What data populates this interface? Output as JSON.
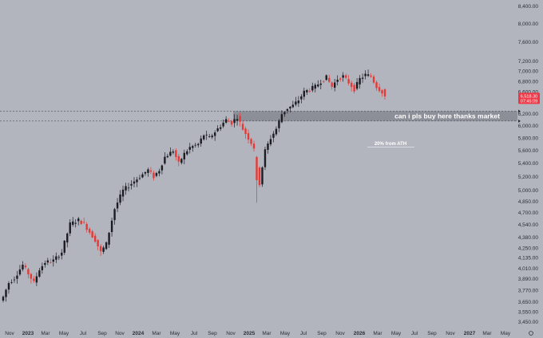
{
  "chart_data": {
    "type": "candlestick",
    "colors": {
      "up": "#1c1c22",
      "down": "#e53935",
      "background": "#b2b5be",
      "zone": "#8c8f98",
      "price_tag": "#f23645"
    },
    "yticks": [
      "8,400.00",
      "8,000.00",
      "7,600.00",
      "7,200.00",
      "7,000.00",
      "6,800.00",
      "6,600.00",
      "6,200.00",
      "6,000.00",
      "5,800.00",
      "5,600.00",
      "5,400.00",
      "5,200.00",
      "5,000.00",
      "4,850.00",
      "4,700.00",
      "4,540.00",
      "4,380.00",
      "4,250.00",
      "4,135.00",
      "4,010.00",
      "3,890.00",
      "3,770.00",
      "3,650.00",
      "3,550.00",
      "3,450.00"
    ],
    "ytick_values": [
      8400,
      8000,
      7600,
      7200,
      7000,
      6800,
      6600,
      6200,
      6000,
      5800,
      5600,
      5400,
      5200,
      5000,
      4850,
      4700,
      4540,
      4380,
      4250,
      4135,
      4010,
      3890,
      3770,
      3650,
      3550,
      3450
    ],
    "xticks": [
      "Nov",
      "2023",
      "Mar",
      "May",
      "Jul",
      "Sep",
      "Nov",
      "2024",
      "Mar",
      "May",
      "Jul",
      "Sep",
      "Nov",
      "2025",
      "Mar",
      "May",
      "Jul",
      "Sep",
      "Nov",
      "2026",
      "Mar",
      "May",
      "Jul",
      "Sep",
      "Nov",
      "2027",
      "Mar",
      "May"
    ],
    "year_labels": [
      "2023",
      "2024",
      "2025",
      "2026",
      "2027"
    ],
    "current_price": "6,518.30",
    "countdown": "07:45:09",
    "zone": {
      "low": 6080,
      "high": 6250
    },
    "annotation": "can i pls buy here thanks market",
    "annotation2": "20% from ATH",
    "anchors": [
      [
        0,
        3700
      ],
      [
        2,
        3850
      ],
      [
        4,
        3900
      ],
      [
        7,
        4050
      ],
      [
        9,
        3950
      ],
      [
        11,
        3850
      ],
      [
        13,
        4000
      ],
      [
        15,
        4080
      ],
      [
        18,
        4100
      ],
      [
        21,
        4200
      ],
      [
        24,
        4550
      ],
      [
        27,
        4600
      ],
      [
        29,
        4550
      ],
      [
        31,
        4450
      ],
      [
        33,
        4350
      ],
      [
        35,
        4200
      ],
      [
        37,
        4300
      ],
      [
        40,
        4750
      ],
      [
        43,
        5000
      ],
      [
        46,
        5100
      ],
      [
        49,
        5200
      ],
      [
        52,
        5300
      ],
      [
        54,
        5200
      ],
      [
        56,
        5300
      ],
      [
        58,
        5500
      ],
      [
        61,
        5600
      ],
      [
        63,
        5400
      ],
      [
        65,
        5550
      ],
      [
        67,
        5650
      ],
      [
        70,
        5700
      ],
      [
        72,
        5850
      ],
      [
        74,
        5800
      ],
      [
        76,
        5900
      ],
      [
        78,
        6000
      ],
      [
        80,
        6100
      ],
      [
        82,
        6050
      ],
      [
        84,
        6150
      ],
      [
        86,
        5950
      ],
      [
        88,
        5800
      ],
      [
        90,
        5650
      ],
      [
        91,
        5350
      ],
      [
        92,
        5100
      ],
      [
        94,
        5600
      ],
      [
        96,
        5800
      ],
      [
        98,
        5950
      ],
      [
        100,
        6200
      ],
      [
        102,
        6300
      ],
      [
        104,
        6350
      ],
      [
        106,
        6450
      ],
      [
        108,
        6600
      ],
      [
        110,
        6650
      ],
      [
        112,
        6700
      ],
      [
        114,
        6800
      ],
      [
        116,
        6880
      ],
      [
        118,
        6700
      ],
      [
        120,
        6850
      ],
      [
        122,
        6900
      ],
      [
        124,
        6780
      ],
      [
        126,
        6650
      ],
      [
        128,
        6850
      ],
      [
        130,
        6930
      ],
      [
        132,
        6900
      ],
      [
        134,
        6700
      ],
      [
        136,
        6600
      ],
      [
        137,
        6518
      ]
    ]
  }
}
